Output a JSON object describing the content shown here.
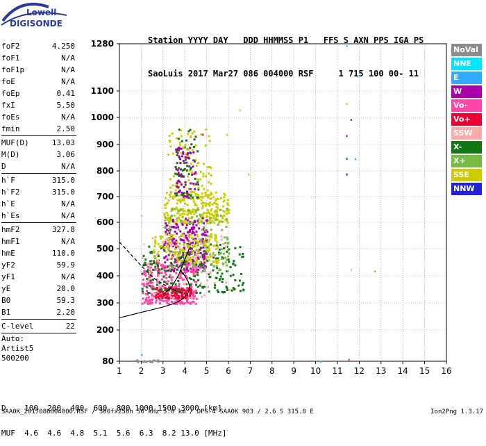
{
  "logo": {
    "line1": "Lowell",
    "line2": "DIGISONDE"
  },
  "header": {
    "line1": "Station YYYY DAY   DDD HHMMSS P1   FFS S AXN PPS IGA PS",
    "line2": "SaoLuis 2017 Mar27 086 004000 RSF     1 715 100 00- 11"
  },
  "params": {
    "group1": [
      {
        "name": "foF2",
        "value": "4.250"
      },
      {
        "name": "foF1",
        "value": "N/A"
      },
      {
        "name": "foF1p",
        "value": "N/A"
      },
      {
        "name": "foE",
        "value": "N/A"
      },
      {
        "name": "foEp",
        "value": "0.41"
      },
      {
        "name": "fxI",
        "value": "5.50"
      },
      {
        "name": "foEs",
        "value": "N/A"
      },
      {
        "name": "fmin",
        "value": "2.50"
      }
    ],
    "group2": [
      {
        "name": "MUF(D)",
        "value": "13.03"
      },
      {
        "name": "M(D)",
        "value": "3.06"
      },
      {
        "name": "D",
        "value": "N/A"
      }
    ],
    "group3": [
      {
        "name": "h`F",
        "value": "315.0"
      },
      {
        "name": "h`F2",
        "value": "315.0"
      },
      {
        "name": "h`E",
        "value": "N/A"
      },
      {
        "name": "h`Es",
        "value": "N/A"
      }
    ],
    "group4": [
      {
        "name": "hmF2",
        "value": "327.8"
      },
      {
        "name": "hmF1",
        "value": "N/A"
      },
      {
        "name": "hmE",
        "value": "110.0"
      },
      {
        "name": "yF2",
        "value": "59.9"
      },
      {
        "name": "yF1",
        "value": "N/A"
      },
      {
        "name": "yE",
        "value": "20.0"
      },
      {
        "name": "B0",
        "value": "59.3"
      },
      {
        "name": "B1",
        "value": "2.20"
      }
    ],
    "group5": [
      {
        "name": "C-level",
        "value": "22"
      }
    ],
    "auto": [
      "Auto:",
      "Artist5",
      "500200"
    ]
  },
  "legend": [
    {
      "label": "NoVal",
      "color": "#8c8c8c"
    },
    {
      "label": "NNE",
      "color": "#00e5ff"
    },
    {
      "label": "E",
      "color": "#33aaff"
    },
    {
      "label": "W",
      "color": "#aa00aa"
    },
    {
      "label": "Vo-",
      "color": "#ff44aa"
    },
    {
      "label": "Vo+",
      "color": "#ee0033"
    },
    {
      "label": "SSW",
      "color": "#ffaaaa"
    },
    {
      "label": "X-",
      "color": "#117711"
    },
    {
      "label": "X+",
      "color": "#77bb44"
    },
    {
      "label": "SSE",
      "color": "#cccc00"
    },
    {
      "label": "NNW",
      "color": "#2222dd"
    }
  ],
  "chart_data": {
    "type": "scatter",
    "x_ticks": [
      "1",
      "2",
      "3",
      "4",
      "5",
      "6",
      "7",
      "8",
      "9",
      "10",
      "11",
      "12",
      "13",
      "14",
      "15",
      "16"
    ],
    "y_ticks": [
      "80",
      "200",
      "300",
      "400",
      "500",
      "600",
      "700",
      "800",
      "900",
      "1000",
      "1100",
      "1280"
    ],
    "xlim": [
      1,
      16
    ],
    "ylim": [
      80,
      1280
    ],
    "clusters": [
      {
        "color": "#cccc00",
        "xmin": 3.0,
        "xmax": 6.0,
        "ymin": 600,
        "ymax": 720,
        "n": 260
      },
      {
        "color": "#aa00aa",
        "xmin": 3.0,
        "xmax": 5.0,
        "ymin": 420,
        "ymax": 620,
        "n": 260
      },
      {
        "color": "#ff44aa",
        "xmin": 2.0,
        "xmax": 4.5,
        "ymin": 300,
        "ymax": 460,
        "n": 300
      },
      {
        "color": "#ee0033",
        "xmin": 2.6,
        "xmax": 4.3,
        "ymin": 320,
        "ymax": 360,
        "n": 120
      },
      {
        "color": "#117711",
        "xmin": 2.0,
        "xmax": 6.7,
        "ymin": 340,
        "ymax": 520,
        "n": 200
      },
      {
        "color": "#77bb44",
        "xmin": 3.0,
        "xmax": 6.0,
        "ymin": 420,
        "ymax": 660,
        "n": 120
      },
      {
        "color": "#cccc00",
        "xmin": 2.5,
        "xmax": 5.5,
        "ymin": 450,
        "ymax": 560,
        "n": 150
      },
      {
        "color": "#117711",
        "xmin": 3.5,
        "xmax": 4.6,
        "ymin": 700,
        "ymax": 960,
        "n": 60
      },
      {
        "color": "#cccc00",
        "xmin": 3.2,
        "xmax": 5.2,
        "ymin": 720,
        "ymax": 960,
        "n": 80
      },
      {
        "color": "#aa00aa",
        "xmin": 3.5,
        "xmax": 4.5,
        "ymin": 700,
        "ymax": 900,
        "n": 60
      },
      {
        "color": "#8c8c8c",
        "xmin": 1.7,
        "xmax": 2.8,
        "ymin": 80,
        "ymax": 88,
        "n": 15
      },
      {
        "color": "#ffaaaa",
        "xmin": 2.0,
        "xmax": 6.0,
        "ymin": 320,
        "ymax": 560,
        "n": 60
      }
    ],
    "points": [
      {
        "x": 11.4,
        "y": 1275,
        "color": "#00e5ff"
      },
      {
        "x": 11.9,
        "y": 1160,
        "color": "#33aaff"
      },
      {
        "x": 11.4,
        "y": 1055,
        "color": "#cccc00"
      },
      {
        "x": 11.6,
        "y": 995,
        "color": "#117711"
      },
      {
        "x": 11.4,
        "y": 935,
        "color": "#aa00aa"
      },
      {
        "x": 11.4,
        "y": 850,
        "color": "#117711"
      },
      {
        "x": 11.8,
        "y": 848,
        "color": "#33aaff"
      },
      {
        "x": 11.4,
        "y": 790,
        "color": "#2222dd"
      },
      {
        "x": 11.6,
        "y": 425,
        "color": "#ffaaaa"
      },
      {
        "x": 12.7,
        "y": 420,
        "color": "#77bb44"
      },
      {
        "x": 10.2,
        "y": 82,
        "color": "#33aaff"
      },
      {
        "x": 11.5,
        "y": 90,
        "color": "#ff44aa"
      },
      {
        "x": 6.5,
        "y": 1030,
        "color": "#cccc00"
      },
      {
        "x": 5.9,
        "y": 940,
        "color": "#cccc00"
      },
      {
        "x": 6.9,
        "y": 790,
        "color": "#cccc00"
      },
      {
        "x": 4.8,
        "y": 940,
        "color": "#aa00aa"
      },
      {
        "x": 2.0,
        "y": 630,
        "color": "#ffaaaa"
      },
      {
        "x": 2.1,
        "y": 520,
        "color": "#ffaaaa"
      },
      {
        "x": 2.0,
        "y": 108,
        "color": "#33aaff"
      }
    ],
    "profile_solid": [
      [
        1,
        245
      ],
      [
        1.5,
        255
      ],
      [
        2,
        265
      ],
      [
        2.5,
        275
      ],
      [
        3,
        285
      ],
      [
        3.4,
        295
      ],
      [
        3.7,
        305
      ],
      [
        3.9,
        315
      ],
      [
        4.1,
        330
      ],
      [
        4.2,
        345
      ],
      [
        4.22,
        360
      ],
      [
        4.15,
        380
      ],
      [
        4.0,
        400
      ],
      [
        3.8,
        420
      ]
    ],
    "profile_dashed": [
      [
        1.0,
        525
      ],
      [
        1.4,
        490
      ],
      [
        1.8,
        455
      ],
      [
        2.2,
        420
      ],
      [
        2.6,
        390
      ],
      [
        3.0,
        370
      ],
      [
        3.3,
        355
      ],
      [
        3.6,
        345
      ],
      [
        3.9,
        335
      ]
    ],
    "profile_curve": [
      [
        3.0,
        330
      ],
      [
        3.4,
        360
      ],
      [
        3.7,
        400
      ],
      [
        3.9,
        440
      ],
      [
        4.1,
        480
      ],
      [
        4.2,
        500
      ]
    ]
  },
  "muf_table": {
    "d_label": "D",
    "d_values": "100  200  400  600  800 1000 1500 3000 [km]",
    "muf_label": "MUF",
    "muf_values": "4.6  4.6  4.8  5.1  5.6  6.3  8.2 13.0 [MHz]"
  },
  "footer": {
    "text": "SAA0K_2017086004000.RSF / 300fx256h 50 kHz 5.0 km / DPS-4 SAA0K 903 / 2.6 S 315.8 E",
    "version": "Ion2Png 1.3.17"
  }
}
